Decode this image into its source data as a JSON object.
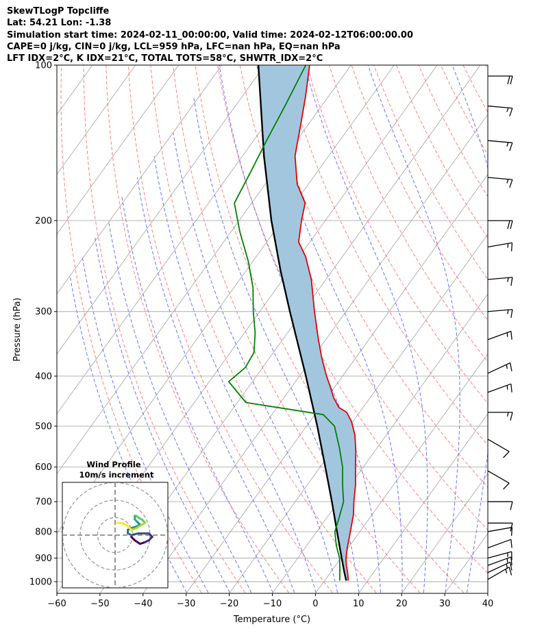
{
  "header": {
    "line1": "SkewTLogP Topcliffe",
    "line2": "Lat: 54.21   Lon: -1.38",
    "line3": "Simulation start time: 2024-02-11_00:00:00, Valid time: 2024-02-12T06:00:00.00",
    "line4": "CAPE=0 j/kg, CIN=0 j/kg, LCL=959 hPa, LFC=nan hPa, EQ=nan hPa",
    "line5": "LFT IDX=2°C, K IDX=21°C, TOTAL TOTS=58°C, SHWTR_IDX=2°C"
  },
  "chart_data": {
    "type": "line",
    "title": "SkewTLogP Topcliffe",
    "xlabel": "Temperature (°C)",
    "ylabel": "Pressure (hPa)",
    "xlim": [
      -60,
      40
    ],
    "ylim": [
      1050,
      100
    ],
    "yscale": "log",
    "skew": true,
    "grid": true,
    "xticks": [
      "−60",
      "−50",
      "−40",
      "−30",
      "−20",
      "−10",
      "0",
      "10",
      "20",
      "30",
      "40"
    ],
    "xtick_values": [
      -60,
      -50,
      -40,
      -30,
      -20,
      -10,
      0,
      10,
      20,
      30,
      40
    ],
    "yticks": [
      1000,
      900,
      800,
      700,
      600,
      500,
      400,
      300,
      200,
      100
    ],
    "series": [
      {
        "name": "",
        "role": "temperature",
        "color": "#e00000",
        "points": [
          [
            995,
            5.5
          ],
          [
            960,
            4.0
          ],
          [
            930,
            2.5
          ],
          [
            900,
            1.2
          ],
          [
            860,
            -0.2
          ],
          [
            800,
            -2.2
          ],
          [
            740,
            -4.4
          ],
          [
            700,
            -6.4
          ],
          [
            650,
            -8.8
          ],
          [
            600,
            -11.8
          ],
          [
            560,
            -14.3
          ],
          [
            520,
            -17.3
          ],
          [
            490,
            -20.3
          ],
          [
            470,
            -23.0
          ],
          [
            460,
            -25.6
          ],
          [
            440,
            -28.5
          ],
          [
            420,
            -31.0
          ],
          [
            400,
            -33.7
          ],
          [
            370,
            -37.7
          ],
          [
            340,
            -41.7
          ],
          [
            300,
            -47.3
          ],
          [
            260,
            -53.4
          ],
          [
            235,
            -58.5
          ],
          [
            220,
            -62.6
          ],
          [
            200,
            -65.5
          ],
          [
            185,
            -67.6
          ],
          [
            170,
            -72.6
          ],
          [
            150,
            -77.8
          ],
          [
            130,
            -81.8
          ],
          [
            115,
            -85.3
          ],
          [
            100,
            -89.6
          ]
        ]
      },
      {
        "name": "",
        "role": "dewpoint",
        "color": "#008000",
        "points": [
          [
            995,
            3.5
          ],
          [
            950,
            1.8
          ],
          [
            900,
            -0.3
          ],
          [
            850,
            -3.2
          ],
          [
            800,
            -5.8
          ],
          [
            750,
            -7.2
          ],
          [
            700,
            -8.8
          ],
          [
            650,
            -11.8
          ],
          [
            600,
            -14.8
          ],
          [
            550,
            -18.8
          ],
          [
            500,
            -23.5
          ],
          [
            475,
            -28.0
          ],
          [
            450,
            -48.0
          ],
          [
            410,
            -55.5
          ],
          [
            385,
            -54.0
          ],
          [
            360,
            -54.5
          ],
          [
            330,
            -57.5
          ],
          [
            300,
            -61.5
          ],
          [
            270,
            -65.5
          ],
          [
            240,
            -71.0
          ],
          [
            210,
            -78.0
          ],
          [
            185,
            -84.0
          ],
          [
            160,
            -85.5
          ],
          [
            140,
            -87.0
          ],
          [
            120,
            -88.5
          ],
          [
            100,
            -90.5
          ]
        ]
      },
      {
        "name": "",
        "role": "parcel",
        "color": "#000000",
        "points": [
          [
            995,
            5.0
          ],
          [
            959,
            3.2
          ],
          [
            900,
            0.2
          ],
          [
            800,
            -5.3
          ],
          [
            700,
            -11.5
          ],
          [
            600,
            -18.8
          ],
          [
            500,
            -27.5
          ],
          [
            400,
            -38.5
          ],
          [
            300,
            -53.0
          ],
          [
            250,
            -62.0
          ],
          [
            200,
            -72.5
          ],
          [
            150,
            -85.0
          ],
          [
            100,
            -101.5
          ]
        ]
      }
    ],
    "shaded_area": {
      "between": [
        "temperature",
        "parcel"
      ],
      "color": "#a3c6df"
    },
    "reference_lines": {
      "isotherms": {
        "color": "#aaaaaa",
        "style": "solid"
      },
      "dry_adiabats": {
        "color": "#ff6a6a",
        "style": "dashed"
      },
      "moist_adiabats": {
        "color": "#4f5bff",
        "style": "dashed"
      },
      "mixing_ratio": {
        "color": "#8a8ae0",
        "style": "dashed"
      }
    },
    "wind_barbs": [
      {
        "p": 990,
        "speed": 15,
        "dir": 240
      },
      {
        "p": 960,
        "speed": 15,
        "dir": 245
      },
      {
        "p": 930,
        "speed": 15,
        "dir": 250
      },
      {
        "p": 900,
        "speed": 15,
        "dir": 255
      },
      {
        "p": 860,
        "speed": 10,
        "dir": 250
      },
      {
        "p": 800,
        "speed": 10,
        "dir": 260
      },
      {
        "p": 770,
        "speed": 10,
        "dir": 270
      },
      {
        "p": 700,
        "speed": 10,
        "dir": 270
      },
      {
        "p": 610,
        "speed": 10,
        "dir": 300
      },
      {
        "p": 530,
        "speed": 10,
        "dir": 300
      },
      {
        "p": 470,
        "speed": 15,
        "dir": 270
      },
      {
        "p": 430,
        "speed": 15,
        "dir": 250
      },
      {
        "p": 395,
        "speed": 15,
        "dir": 245
      },
      {
        "p": 340,
        "speed": 15,
        "dir": 250
      },
      {
        "p": 300,
        "speed": 15,
        "dir": 265
      },
      {
        "p": 260,
        "speed": 15,
        "dir": 265
      },
      {
        "p": 225,
        "speed": 15,
        "dir": 260
      },
      {
        "p": 200,
        "speed": 20,
        "dir": 270
      },
      {
        "p": 165,
        "speed": 15,
        "dir": 275
      },
      {
        "p": 140,
        "speed": 15,
        "dir": 275
      },
      {
        "p": 120,
        "speed": 15,
        "dir": 275
      },
      {
        "p": 105,
        "speed": 20,
        "dir": 270
      }
    ],
    "inset": {
      "title": "Wind Profile",
      "subtitle": "10m/s increment",
      "rings": 3,
      "hodograph": [
        [
          3,
          -1
        ],
        [
          5,
          -3
        ],
        [
          8,
          -5
        ],
        [
          11,
          -4
        ],
        [
          13,
          -3
        ],
        [
          15,
          -1
        ],
        [
          13,
          1
        ],
        [
          10,
          1
        ],
        [
          7,
          1
        ],
        [
          3,
          0
        ],
        [
          1,
          1
        ],
        [
          1,
          3
        ],
        [
          3,
          4
        ],
        [
          6,
          5
        ],
        [
          8,
          6
        ],
        [
          6,
          8
        ],
        [
          5,
          9
        ],
        [
          5,
          11
        ],
        [
          6,
          11
        ],
        [
          7,
          10
        ],
        [
          9,
          9
        ],
        [
          11,
          7
        ],
        [
          9,
          6
        ],
        [
          6,
          4
        ],
        [
          3,
          3
        ],
        [
          0,
          6
        ],
        [
          -3,
          7
        ],
        [
          -5,
          7
        ]
      ]
    }
  }
}
